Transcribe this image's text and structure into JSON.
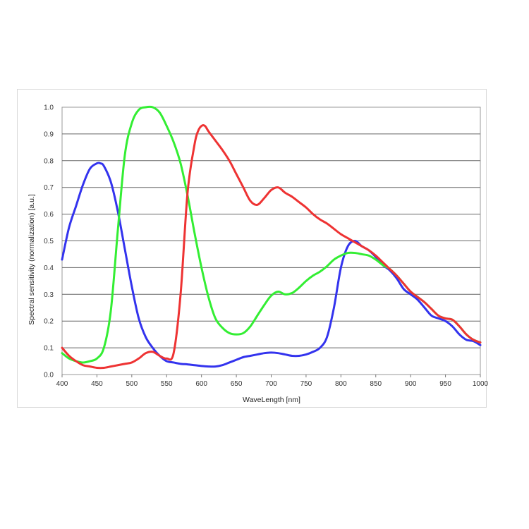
{
  "chart_data": {
    "type": "line",
    "title": "",
    "xlabel": "WaveLength [nm]",
    "ylabel": "Spectral sensitivity (normalization) [a.u.]",
    "xlim": [
      400,
      1000
    ],
    "ylim": [
      0.0,
      1.0
    ],
    "grid": true,
    "x_ticks": [
      "400",
      "450",
      "500",
      "550",
      "600",
      "650",
      "700",
      "750",
      "800",
      "850",
      "900",
      "950",
      "1000"
    ],
    "y_ticks": [
      "0.0",
      "0.1",
      "0.2",
      "0.3",
      "0.4",
      "0.5",
      "0.6",
      "0.7",
      "0.8",
      "0.9",
      "1.0"
    ],
    "series": [
      {
        "color": "#3333ee",
        "x": [
          400,
          410,
          420,
          430,
          440,
          450,
          455,
          460,
          470,
          480,
          490,
          500,
          510,
          520,
          530,
          540,
          550,
          560,
          570,
          580,
          590,
          600,
          610,
          620,
          630,
          640,
          650,
          660,
          670,
          680,
          690,
          700,
          710,
          720,
          730,
          740,
          750,
          760,
          770,
          780,
          790,
          800,
          810,
          820,
          830,
          840,
          850,
          860,
          870,
          880,
          890,
          900,
          910,
          920,
          930,
          940,
          950,
          960,
          970,
          980,
          990,
          1000
        ],
        "y": [
          0.43,
          0.55,
          0.63,
          0.71,
          0.77,
          0.79,
          0.79,
          0.78,
          0.72,
          0.61,
          0.47,
          0.33,
          0.21,
          0.14,
          0.1,
          0.07,
          0.05,
          0.045,
          0.04,
          0.038,
          0.035,
          0.032,
          0.03,
          0.03,
          0.035,
          0.045,
          0.055,
          0.065,
          0.07,
          0.075,
          0.08,
          0.082,
          0.08,
          0.075,
          0.07,
          0.07,
          0.075,
          0.085,
          0.1,
          0.14,
          0.25,
          0.4,
          0.48,
          0.5,
          0.48,
          0.465,
          0.44,
          0.41,
          0.39,
          0.36,
          0.32,
          0.3,
          0.28,
          0.25,
          0.22,
          0.21,
          0.2,
          0.18,
          0.15,
          0.13,
          0.125,
          0.11
        ]
      },
      {
        "color": "#33ee33",
        "x": [
          400,
          410,
          420,
          430,
          440,
          450,
          460,
          470,
          480,
          490,
          500,
          510,
          520,
          530,
          540,
          550,
          560,
          570,
          580,
          590,
          600,
          610,
          620,
          630,
          640,
          650,
          660,
          670,
          680,
          690,
          700,
          710,
          720,
          730,
          740,
          750,
          760,
          770,
          780,
          790,
          800,
          810,
          820,
          830,
          840,
          850,
          860,
          870,
          880,
          890,
          900,
          910,
          920,
          930,
          940,
          950,
          960,
          970,
          980,
          990,
          1000
        ],
        "y": [
          0.08,
          0.06,
          0.05,
          0.045,
          0.05,
          0.06,
          0.1,
          0.24,
          0.54,
          0.82,
          0.94,
          0.99,
          1.0,
          1.0,
          0.98,
          0.93,
          0.87,
          0.79,
          0.67,
          0.53,
          0.4,
          0.29,
          0.21,
          0.175,
          0.155,
          0.15,
          0.155,
          0.18,
          0.22,
          0.26,
          0.295,
          0.31,
          0.3,
          0.305,
          0.325,
          0.35,
          0.37,
          0.385,
          0.405,
          0.43,
          0.445,
          0.455,
          0.455,
          0.45,
          0.445,
          0.43,
          0.41,
          0.395,
          0.37,
          0.34,
          0.31,
          0.29,
          0.27,
          0.245,
          0.22,
          0.21,
          0.205,
          0.18,
          0.15,
          0.13,
          0.12
        ]
      },
      {
        "color": "#ee3333",
        "x": [
          400,
          410,
          420,
          430,
          440,
          450,
          460,
          470,
          480,
          490,
          500,
          510,
          520,
          530,
          540,
          550,
          560,
          570,
          580,
          590,
          595,
          600,
          605,
          610,
          620,
          630,
          640,
          650,
          660,
          670,
          680,
          690,
          700,
          710,
          720,
          730,
          740,
          750,
          760,
          770,
          780,
          790,
          800,
          810,
          820,
          830,
          840,
          850,
          860,
          870,
          880,
          890,
          900,
          910,
          920,
          930,
          940,
          950,
          960,
          970,
          980,
          990,
          1000
        ],
        "y": [
          0.1,
          0.07,
          0.05,
          0.035,
          0.03,
          0.025,
          0.025,
          0.03,
          0.035,
          0.04,
          0.045,
          0.06,
          0.08,
          0.085,
          0.07,
          0.06,
          0.08,
          0.3,
          0.68,
          0.86,
          0.91,
          0.93,
          0.93,
          0.91,
          0.875,
          0.84,
          0.8,
          0.75,
          0.7,
          0.65,
          0.635,
          0.66,
          0.69,
          0.7,
          0.68,
          0.665,
          0.645,
          0.625,
          0.6,
          0.58,
          0.565,
          0.545,
          0.525,
          0.51,
          0.495,
          0.48,
          0.465,
          0.445,
          0.42,
          0.395,
          0.37,
          0.34,
          0.31,
          0.29,
          0.27,
          0.245,
          0.22,
          0.21,
          0.205,
          0.18,
          0.15,
          0.13,
          0.12
        ]
      }
    ]
  }
}
